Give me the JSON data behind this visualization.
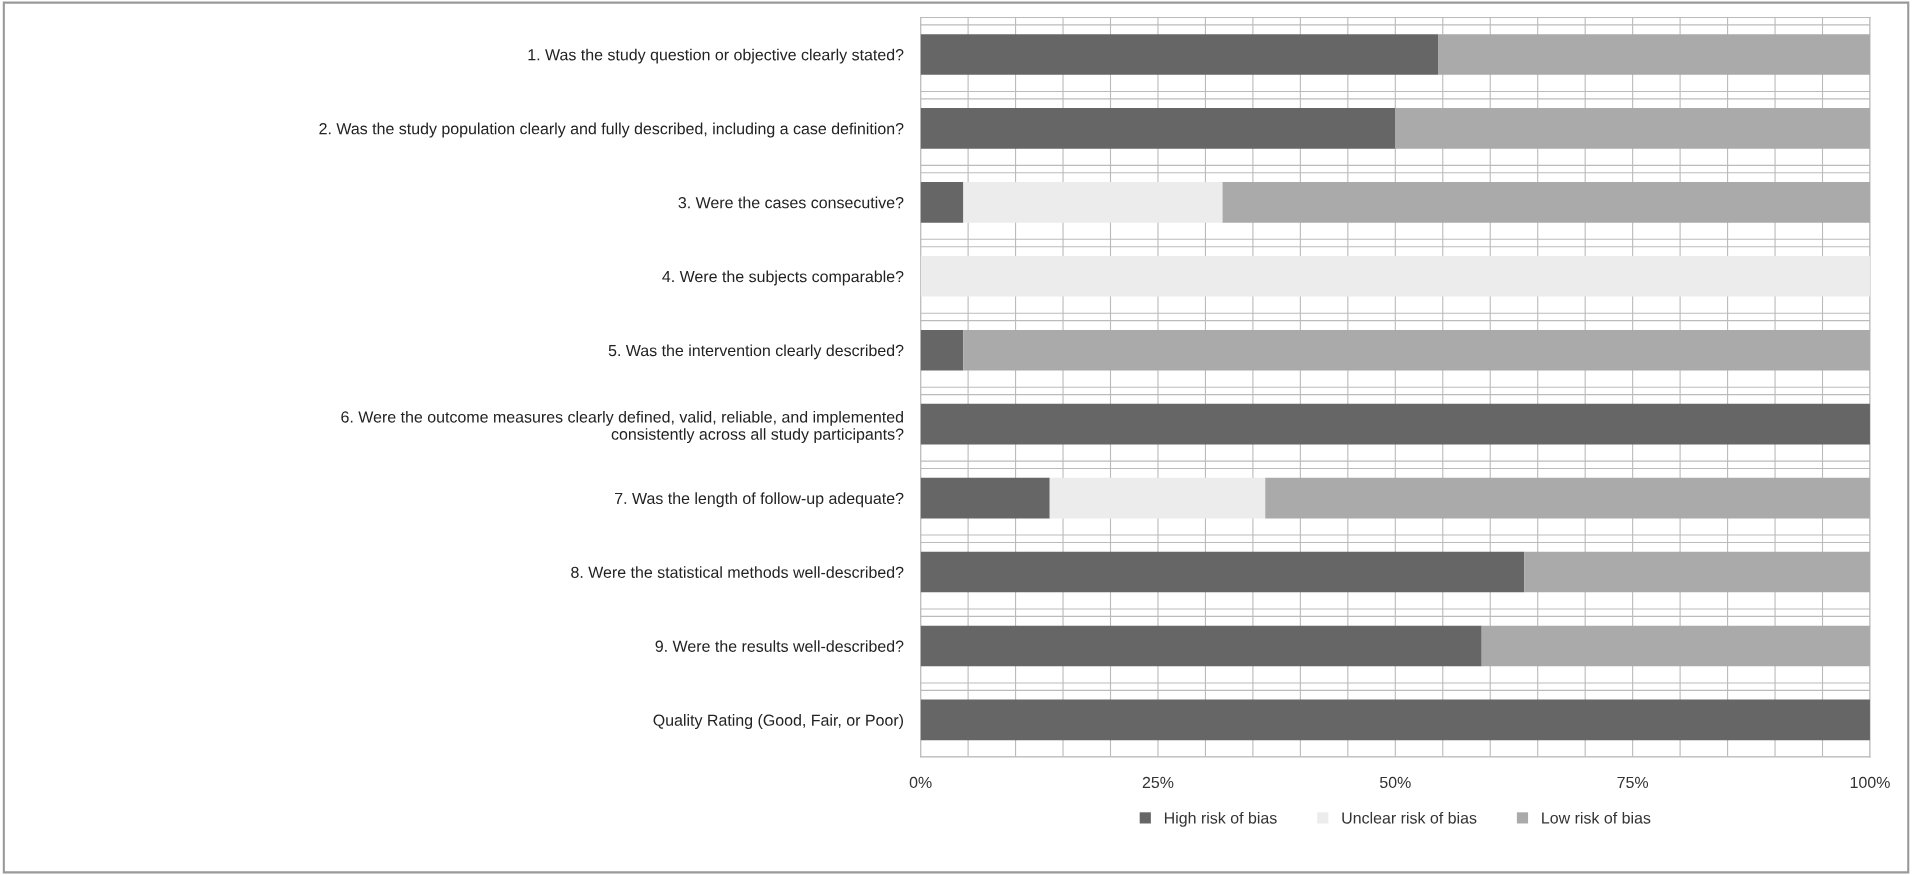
{
  "chart_data": {
    "type": "bar",
    "orientation": "horizontal",
    "stacked": true,
    "categories": [
      "1. Was the study question or objective clearly stated?",
      "2. Was the study population clearly and fully described, including a case definition?",
      "3. Were the cases consecutive?",
      "4. Were the subjects comparable?",
      "5. Was the intervention clearly described?",
      "6. Were the outcome measures clearly defined, valid, reliable, and implemented\nconsistently across all study participants?",
      "7. Was the length of follow-up adequate?",
      "8. Were the statistical methods well-described?",
      "9. Were the results well-described?",
      "Quality Rating (Good, Fair, or Poor)"
    ],
    "series": [
      {
        "name": "High risk of bias",
        "color": "#666666",
        "values": [
          54.5,
          50,
          4.5,
          0,
          4.5,
          100,
          13.6,
          63.6,
          59.1,
          100
        ]
      },
      {
        "name": "Unclear risk of bias",
        "color": "#ececec",
        "values": [
          0,
          0,
          27.3,
          100,
          0,
          0,
          22.7,
          0,
          0,
          0
        ]
      },
      {
        "name": "Low risk of bias",
        "color": "#aaaaaa",
        "values": [
          45.5,
          50,
          68.2,
          0,
          95.5,
          0,
          63.7,
          36.4,
          40.9,
          0
        ]
      }
    ],
    "xlim": [
      0,
      100
    ],
    "xticks": [
      {
        "value": 0,
        "label": "0%"
      },
      {
        "value": 5,
        "label": null
      },
      {
        "value": 10,
        "label": null
      },
      {
        "value": 15,
        "label": null
      },
      {
        "value": 20,
        "label": null
      },
      {
        "value": 25,
        "label": "25%"
      },
      {
        "value": 30,
        "label": null
      },
      {
        "value": 35,
        "label": null
      },
      {
        "value": 40,
        "label": null
      },
      {
        "value": 45,
        "label": null
      },
      {
        "value": 50,
        "label": "50%"
      },
      {
        "value": 55,
        "label": null
      },
      {
        "value": 60,
        "label": null
      },
      {
        "value": 65,
        "label": null
      },
      {
        "value": 70,
        "label": null
      },
      {
        "value": 75,
        "label": "75%"
      },
      {
        "value": 80,
        "label": null
      },
      {
        "value": 85,
        "label": null
      },
      {
        "value": 90,
        "label": null
      },
      {
        "value": 95,
        "label": null
      },
      {
        "value": 100,
        "label": "100%"
      }
    ],
    "grid": true,
    "legend": "bottom"
  }
}
